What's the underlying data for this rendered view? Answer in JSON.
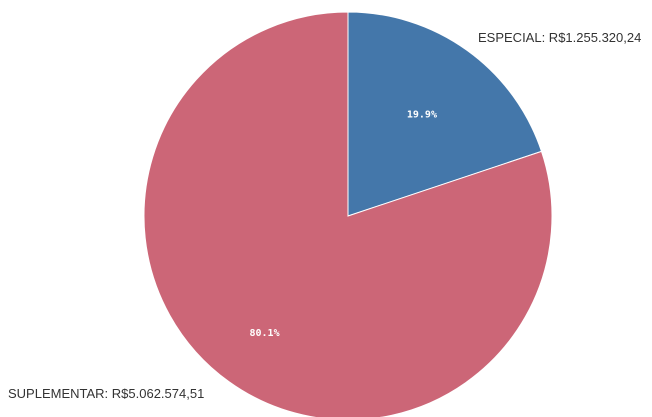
{
  "chart_data": {
    "type": "pie",
    "title": "",
    "slices": [
      {
        "name": "ESPECIAL",
        "value": 1255320.24,
        "value_label": "R$1.255.320,24",
        "outer_label": "ESPECIAL: R$1.255.320,24",
        "percent_label": "19.9%",
        "color": "#4477aa"
      },
      {
        "name": "SUPLEMENTAR",
        "value": 5062574.51,
        "value_label": "R$5.062.574,51",
        "outer_label": "SUPLEMENTAR: R$5.062.574,51",
        "percent_label": "80.1%",
        "color": "#cc6677"
      }
    ]
  }
}
